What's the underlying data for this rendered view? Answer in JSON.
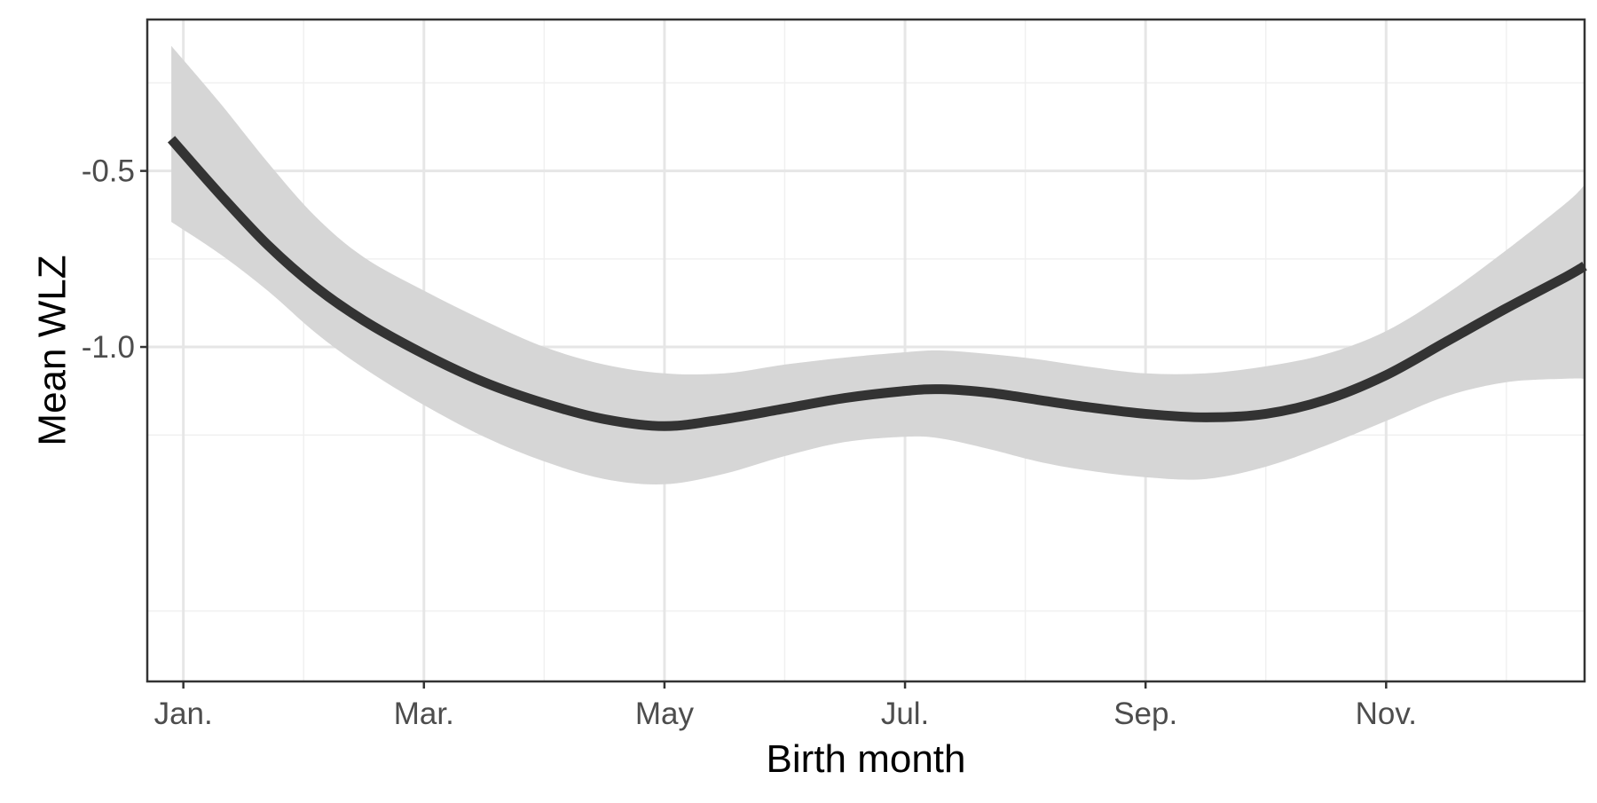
{
  "chart_data": {
    "type": "line",
    "xlabel": "Birth month",
    "ylabel": "Mean WLZ",
    "x_tick_labels": [
      "Jan.",
      "Mar.",
      "May",
      "Jul.",
      "Sep.",
      "Nov."
    ],
    "x_tick_values": [
      1,
      3,
      5,
      7,
      9,
      11
    ],
    "y_tick_labels": [
      "-0.5",
      "-1.0"
    ],
    "y_tick_values": [
      -0.5,
      -1.0
    ],
    "xlim": [
      0.7,
      12.65
    ],
    "ylim": [
      -1.95,
      -0.07
    ],
    "grid": true,
    "legend": "none",
    "series": [
      {
        "x": [
          0.9,
          1.3,
          1.7,
          2.1,
          2.5,
          3.0,
          3.5,
          4.0,
          4.5,
          5.0,
          5.5,
          6.0,
          6.5,
          7.0,
          7.3,
          7.7,
          8.1,
          8.5,
          9.0,
          9.5,
          10.0,
          10.5,
          11.0,
          11.5,
          12.0,
          12.5,
          12.65
        ],
        "y": [
          -0.41,
          -0.565,
          -0.71,
          -0.83,
          -0.925,
          -1.02,
          -1.1,
          -1.16,
          -1.205,
          -1.225,
          -1.205,
          -1.175,
          -1.145,
          -1.125,
          -1.12,
          -1.13,
          -1.15,
          -1.17,
          -1.19,
          -1.2,
          -1.19,
          -1.15,
          -1.08,
          -0.985,
          -0.89,
          -0.8,
          -0.77
        ],
        "lower": [
          -0.645,
          -0.735,
          -0.84,
          -0.96,
          -1.06,
          -1.165,
          -1.255,
          -1.325,
          -1.375,
          -1.39,
          -1.36,
          -1.31,
          -1.27,
          -1.255,
          -1.26,
          -1.29,
          -1.325,
          -1.35,
          -1.37,
          -1.375,
          -1.34,
          -1.28,
          -1.21,
          -1.14,
          -1.1,
          -1.09,
          -1.09
        ],
        "upper": [
          -0.145,
          -0.305,
          -0.475,
          -0.63,
          -0.745,
          -0.84,
          -0.925,
          -1.0,
          -1.05,
          -1.075,
          -1.075,
          -1.05,
          -1.03,
          -1.015,
          -1.01,
          -1.02,
          -1.035,
          -1.055,
          -1.075,
          -1.075,
          -1.055,
          -1.02,
          -0.955,
          -0.85,
          -0.725,
          -0.59,
          -0.54
        ]
      }
    ],
    "colors": {
      "line": "#333333",
      "band": "#d6d6d6",
      "grid_major": "#e6e6e6",
      "grid_minor": "#f0f0f0",
      "panel_border": "#333333"
    }
  }
}
